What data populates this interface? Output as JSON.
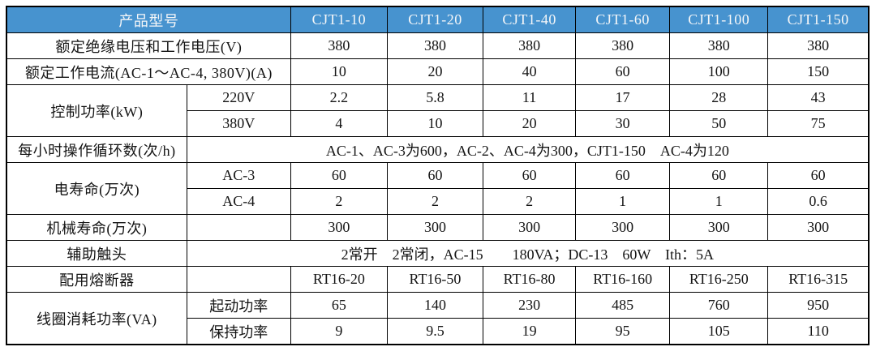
{
  "table": {
    "colors": {
      "header_bg": "#4793CF",
      "header_text": "#F4F6F8",
      "border": "#000000",
      "cell_bg": "#FFFFFF",
      "cell_text": "#141414"
    },
    "header": {
      "product_label": "产品型号",
      "models": [
        "CJT1-10",
        "CJT1-20",
        "CJT1-40",
        "CJT1-60",
        "CJT1-100",
        "CJT1-150"
      ]
    },
    "rows": {
      "rated_voltage": {
        "label": "额定绝缘电压和工作电压(V)",
        "values": [
          "380",
          "380",
          "380",
          "380",
          "380",
          "380"
        ]
      },
      "rated_current": {
        "label": "额定工作电流(AC-1～AC-4, 380V)(A)",
        "values": [
          "10",
          "20",
          "40",
          "60",
          "100",
          "150"
        ]
      },
      "control_power": {
        "label": "控制功率(kW)",
        "sub_220v": {
          "label": "220V",
          "values": [
            "2.2",
            "5.8",
            "11",
            "17",
            "28",
            "43"
          ]
        },
        "sub_380v": {
          "label": "380V",
          "values": [
            "4",
            "10",
            "20",
            "30",
            "50",
            "75"
          ]
        }
      },
      "operating_cycles": {
        "label": "每小时操作循环数(次/h)",
        "value": "AC-1、AC-3为600，AC-2、AC-4为300，CJT1-150　AC-4为120"
      },
      "electrical_life": {
        "label": "电寿命(万次)",
        "sub_ac3": {
          "label": "AC-3",
          "values": [
            "60",
            "60",
            "60",
            "60",
            "60",
            "60"
          ]
        },
        "sub_ac4": {
          "label": "AC-4",
          "values": [
            "2",
            "2",
            "2",
            "1",
            "1",
            "0.6"
          ]
        }
      },
      "mechanical_life": {
        "label": "机械寿命(万次)",
        "values": [
          "300",
          "300",
          "300",
          "300",
          "300",
          "300"
        ]
      },
      "auxiliary_contacts": {
        "label": "辅助触头",
        "value": "2常开　2常闭，AC-15　　180VA；DC-13　60W　Ith：5A"
      },
      "fuse": {
        "label": "配用熔断器",
        "values": [
          "RT16-20",
          "RT16-50",
          "RT16-80",
          "RT16-160",
          "RT16-250",
          "RT16-315"
        ]
      },
      "coil_power": {
        "label": "线圈消耗功率(VA)",
        "sub_start": {
          "label": "起动功率",
          "values": [
            "65",
            "140",
            "230",
            "485",
            "760",
            "950"
          ]
        },
        "sub_hold": {
          "label": "保持功率",
          "values": [
            "9",
            "9.5",
            "19",
            "95",
            "105",
            "110"
          ]
        }
      }
    }
  }
}
